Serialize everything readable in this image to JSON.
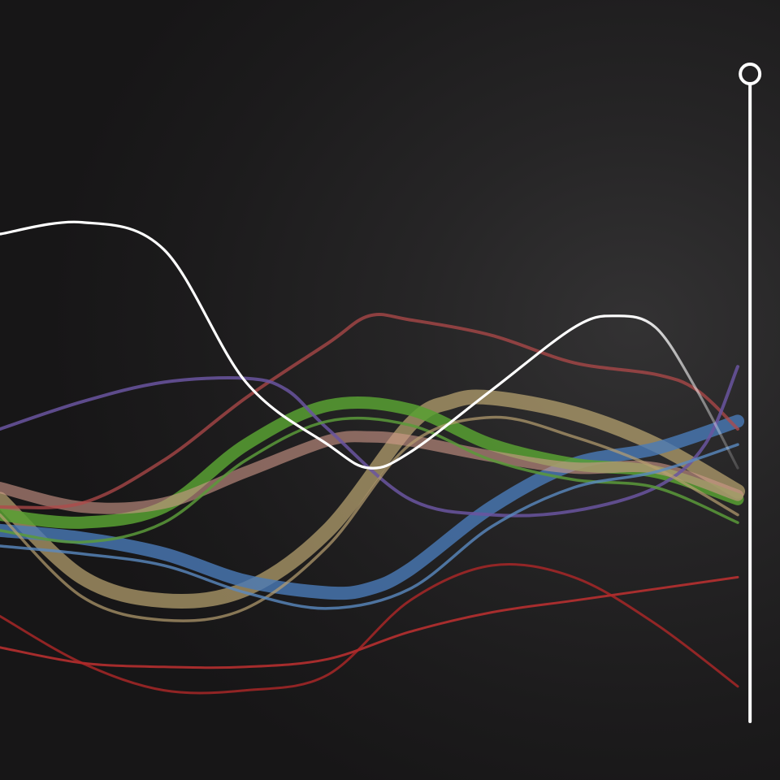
{
  "chart_data": {
    "type": "line",
    "title": "",
    "xlabel": "",
    "ylabel": "",
    "grid": true,
    "legend": "none",
    "xlim": [
      0,
      9
    ],
    "ylim": [
      0,
      10
    ],
    "gridlines_y": [
      1.9,
      3.0,
      4.1,
      5.2,
      6.3,
      7.4,
      8.5
    ],
    "cursor": {
      "x": 9.15,
      "color": "#ffffff"
    },
    "series": [
      {
        "color": "#ffffff",
        "width": 3.2,
        "opacity": 1.0,
        "fade": true,
        "x": [
          0,
          1,
          2,
          3,
          4,
          4.5,
          5,
          6,
          7,
          7.5,
          8,
          8.5,
          9
        ],
        "y": [
          7.0,
          7.15,
          6.8,
          5.1,
          4.3,
          4.0,
          4.2,
          5.0,
          5.8,
          5.95,
          5.8,
          5.0,
          4.0
        ]
      },
      {
        "color": "#b04a4a",
        "width": 4,
        "opacity": 0.75,
        "x": [
          0,
          1,
          2,
          3,
          4,
          4.5,
          5,
          6,
          7,
          8,
          8.5,
          9
        ],
        "y": [
          3.5,
          3.55,
          4.1,
          4.9,
          5.6,
          5.95,
          5.9,
          5.7,
          5.35,
          5.2,
          5.0,
          4.5
        ]
      },
      {
        "color": "#6a55a0",
        "width": 4,
        "opacity": 0.85,
        "x": [
          0,
          1,
          2,
          3,
          3.5,
          4,
          5,
          6,
          7,
          8,
          8.6,
          9
        ],
        "y": [
          4.5,
          4.85,
          5.1,
          5.15,
          5.0,
          4.5,
          3.6,
          3.4,
          3.45,
          3.75,
          4.3,
          5.3
        ]
      },
      {
        "color": "#58a032",
        "width": 15,
        "opacity": 0.85,
        "x": [
          0,
          1,
          2,
          3,
          4,
          5,
          6,
          7,
          8,
          9
        ],
        "y": [
          3.4,
          3.3,
          3.5,
          4.3,
          4.8,
          4.75,
          4.3,
          4.05,
          3.95,
          3.6
        ]
      },
      {
        "color": "#5a9a3a",
        "width": 3.5,
        "opacity": 0.85,
        "x": [
          0,
          1,
          2,
          3,
          4,
          5,
          6,
          7,
          8,
          9
        ],
        "y": [
          3.2,
          3.05,
          3.3,
          4.1,
          4.6,
          4.55,
          4.1,
          3.85,
          3.75,
          3.3
        ]
      },
      {
        "color": "#d09a8a",
        "width": 14,
        "opacity": 0.6,
        "x": [
          0,
          1,
          2,
          3,
          4,
          4.5,
          5,
          6,
          7,
          8,
          9
        ],
        "y": [
          3.75,
          3.5,
          3.55,
          3.95,
          4.35,
          4.4,
          4.35,
          4.15,
          4.0,
          4.0,
          3.65
        ]
      },
      {
        "color": "#c8b078",
        "width": 18,
        "opacity": 0.65,
        "x": [
          0,
          1,
          2,
          3,
          4,
          5,
          5.5,
          6,
          7,
          8,
          9
        ],
        "y": [
          3.6,
          2.6,
          2.3,
          2.45,
          3.2,
          4.55,
          4.85,
          4.9,
          4.7,
          4.3,
          3.7
        ]
      },
      {
        "color": "#b8a070",
        "width": 3.5,
        "opacity": 0.7,
        "x": [
          0,
          1,
          2,
          3,
          4,
          5,
          6,
          7,
          8,
          9
        ],
        "y": [
          3.4,
          2.35,
          2.05,
          2.2,
          3.0,
          4.3,
          4.65,
          4.4,
          4.0,
          3.4
        ]
      },
      {
        "color": "#4a7ab8",
        "width": 16,
        "opacity": 0.8,
        "x": [
          0,
          1,
          2,
          3,
          4,
          4.5,
          5,
          6,
          7,
          8,
          9
        ],
        "y": [
          3.2,
          3.1,
          2.9,
          2.55,
          2.4,
          2.45,
          2.7,
          3.5,
          4.05,
          4.25,
          4.6
        ]
      },
      {
        "color": "#5a8ac0",
        "width": 3.5,
        "opacity": 0.8,
        "x": [
          0,
          1,
          2,
          3,
          4,
          5,
          6,
          7,
          8,
          9
        ],
        "y": [
          3.0,
          2.9,
          2.75,
          2.4,
          2.2,
          2.45,
          3.25,
          3.75,
          3.95,
          4.3
        ]
      },
      {
        "color": "#c03030",
        "width": 3,
        "opacity": 0.85,
        "x": [
          0,
          1,
          2,
          3,
          4,
          5,
          6,
          7,
          8,
          9
        ],
        "y": [
          1.7,
          1.5,
          1.45,
          1.45,
          1.55,
          1.9,
          2.15,
          2.3,
          2.45,
          2.6
        ]
      },
      {
        "color": "#b02828",
        "width": 3,
        "opacity": 0.8,
        "x": [
          0,
          1,
          2,
          3,
          4,
          5,
          6,
          7,
          8,
          9
        ],
        "y": [
          2.1,
          1.5,
          1.15,
          1.15,
          1.35,
          2.3,
          2.75,
          2.6,
          2.0,
          1.2
        ]
      }
    ]
  }
}
